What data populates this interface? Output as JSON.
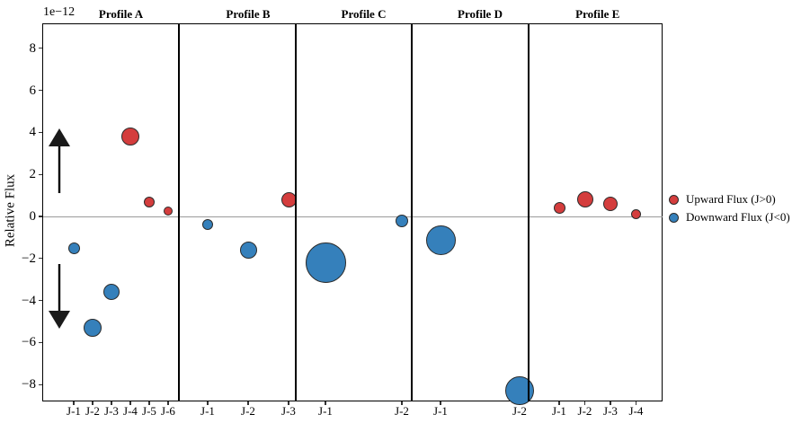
{
  "chart_data": {
    "type": "scatter",
    "title": "",
    "ylabel": "Relative Flux",
    "offset_label": "1e−12",
    "unit_scale": "1e-12",
    "ylim": [
      -8.8,
      9.1
    ],
    "yticks": [
      {
        "v": 8,
        "label": "8"
      },
      {
        "v": 6,
        "label": "6"
      },
      {
        "v": 4,
        "label": "4"
      },
      {
        "v": 2,
        "label": "2"
      },
      {
        "v": 0,
        "label": "0"
      },
      {
        "v": -2,
        "label": "−2"
      },
      {
        "v": -4,
        "label": "−4"
      },
      {
        "v": -6,
        "label": "−6"
      },
      {
        "v": -8,
        "label": "−8"
      }
    ],
    "zero_line": true,
    "colors": {
      "upward": "#d43d3d",
      "downward": "#3580bb",
      "marker_edge": "#2b2b2b",
      "zero_line": "#9a9a9a",
      "divider": "#000000"
    },
    "legend": [
      {
        "key": "upward",
        "label": "Upward Flux (J>0)",
        "color": "#d43d3d"
      },
      {
        "key": "downward",
        "label": "Downward Flux (J<0)",
        "color": "#3580bb"
      }
    ],
    "annotations": [
      {
        "name": "up-arrow",
        "meaning": "upward flux direction"
      },
      {
        "name": "down-arrow",
        "meaning": "downward flux direction"
      }
    ],
    "panels": [
      {
        "title": "Profile A",
        "categories": [
          "J-1",
          "J-2",
          "J-3",
          "J-4",
          "J-5",
          "J-6"
        ],
        "values": [
          -1.5,
          -5.3,
          -3.6,
          3.8,
          0.7,
          0.25
        ],
        "marker_diameters_px": [
          13,
          20,
          18,
          20,
          12,
          10
        ]
      },
      {
        "title": "Profile B",
        "categories": [
          "J-1",
          "J-2",
          "J-3"
        ],
        "values": [
          -0.4,
          -1.6,
          0.8
        ],
        "marker_diameters_px": [
          12,
          19,
          17
        ]
      },
      {
        "title": "Profile C",
        "categories": [
          "J-1",
          "J-2"
        ],
        "values": [
          -2.2,
          -0.2
        ],
        "marker_diameters_px": [
          45,
          14
        ]
      },
      {
        "title": "Profile D",
        "categories": [
          "J-1",
          "J-2"
        ],
        "values": [
          -1.15,
          -8.3
        ],
        "marker_diameters_px": [
          33,
          32
        ]
      },
      {
        "title": "Profile E",
        "categories": [
          "J-1",
          "J-2",
          "J-3",
          "J-4"
        ],
        "values": [
          0.4,
          0.8,
          0.6,
          0.1
        ],
        "marker_diameters_px": [
          13,
          18,
          16,
          11
        ]
      }
    ]
  }
}
